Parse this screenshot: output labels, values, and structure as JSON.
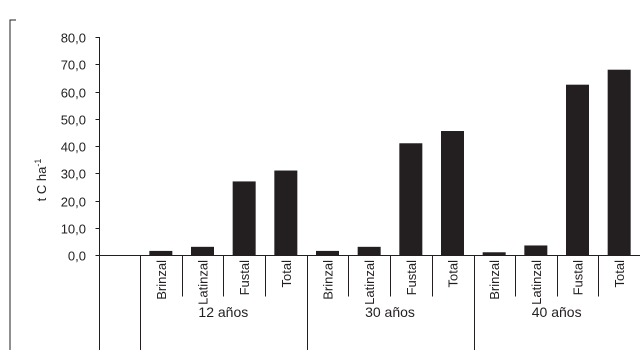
{
  "chart_data": {
    "type": "bar",
    "title": "",
    "ylabel": "t C ha",
    "ylabel_superscript": "-1",
    "ylim": [
      0,
      80
    ],
    "y_ticks": [
      "0,0",
      "10,0",
      "20,0",
      "30,0",
      "40,0",
      "50,0",
      "60,0",
      "70,0",
      "80,0"
    ],
    "y_tick_values": [
      0,
      10,
      20,
      30,
      40,
      50,
      60,
      70,
      80
    ],
    "bar_color": "#231f20",
    "grid": false,
    "legend": "none",
    "groups": [
      {
        "label": "12 años",
        "categories": [
          "Brinzal",
          "Latinzal",
          "Fustal",
          "Total"
        ],
        "values": [
          1.5,
          3.0,
          27.0,
          31.0
        ]
      },
      {
        "label": "30 años",
        "categories": [
          "Brinzal",
          "Latinzal",
          "Fustal",
          "Total"
        ],
        "values": [
          1.5,
          3.0,
          41.0,
          45.5
        ]
      },
      {
        "label": "40 años",
        "categories": [
          "Brinzal",
          "Latinzal",
          "Fustal",
          "Total"
        ],
        "values": [
          1.0,
          3.5,
          62.5,
          68.0
        ]
      }
    ]
  }
}
